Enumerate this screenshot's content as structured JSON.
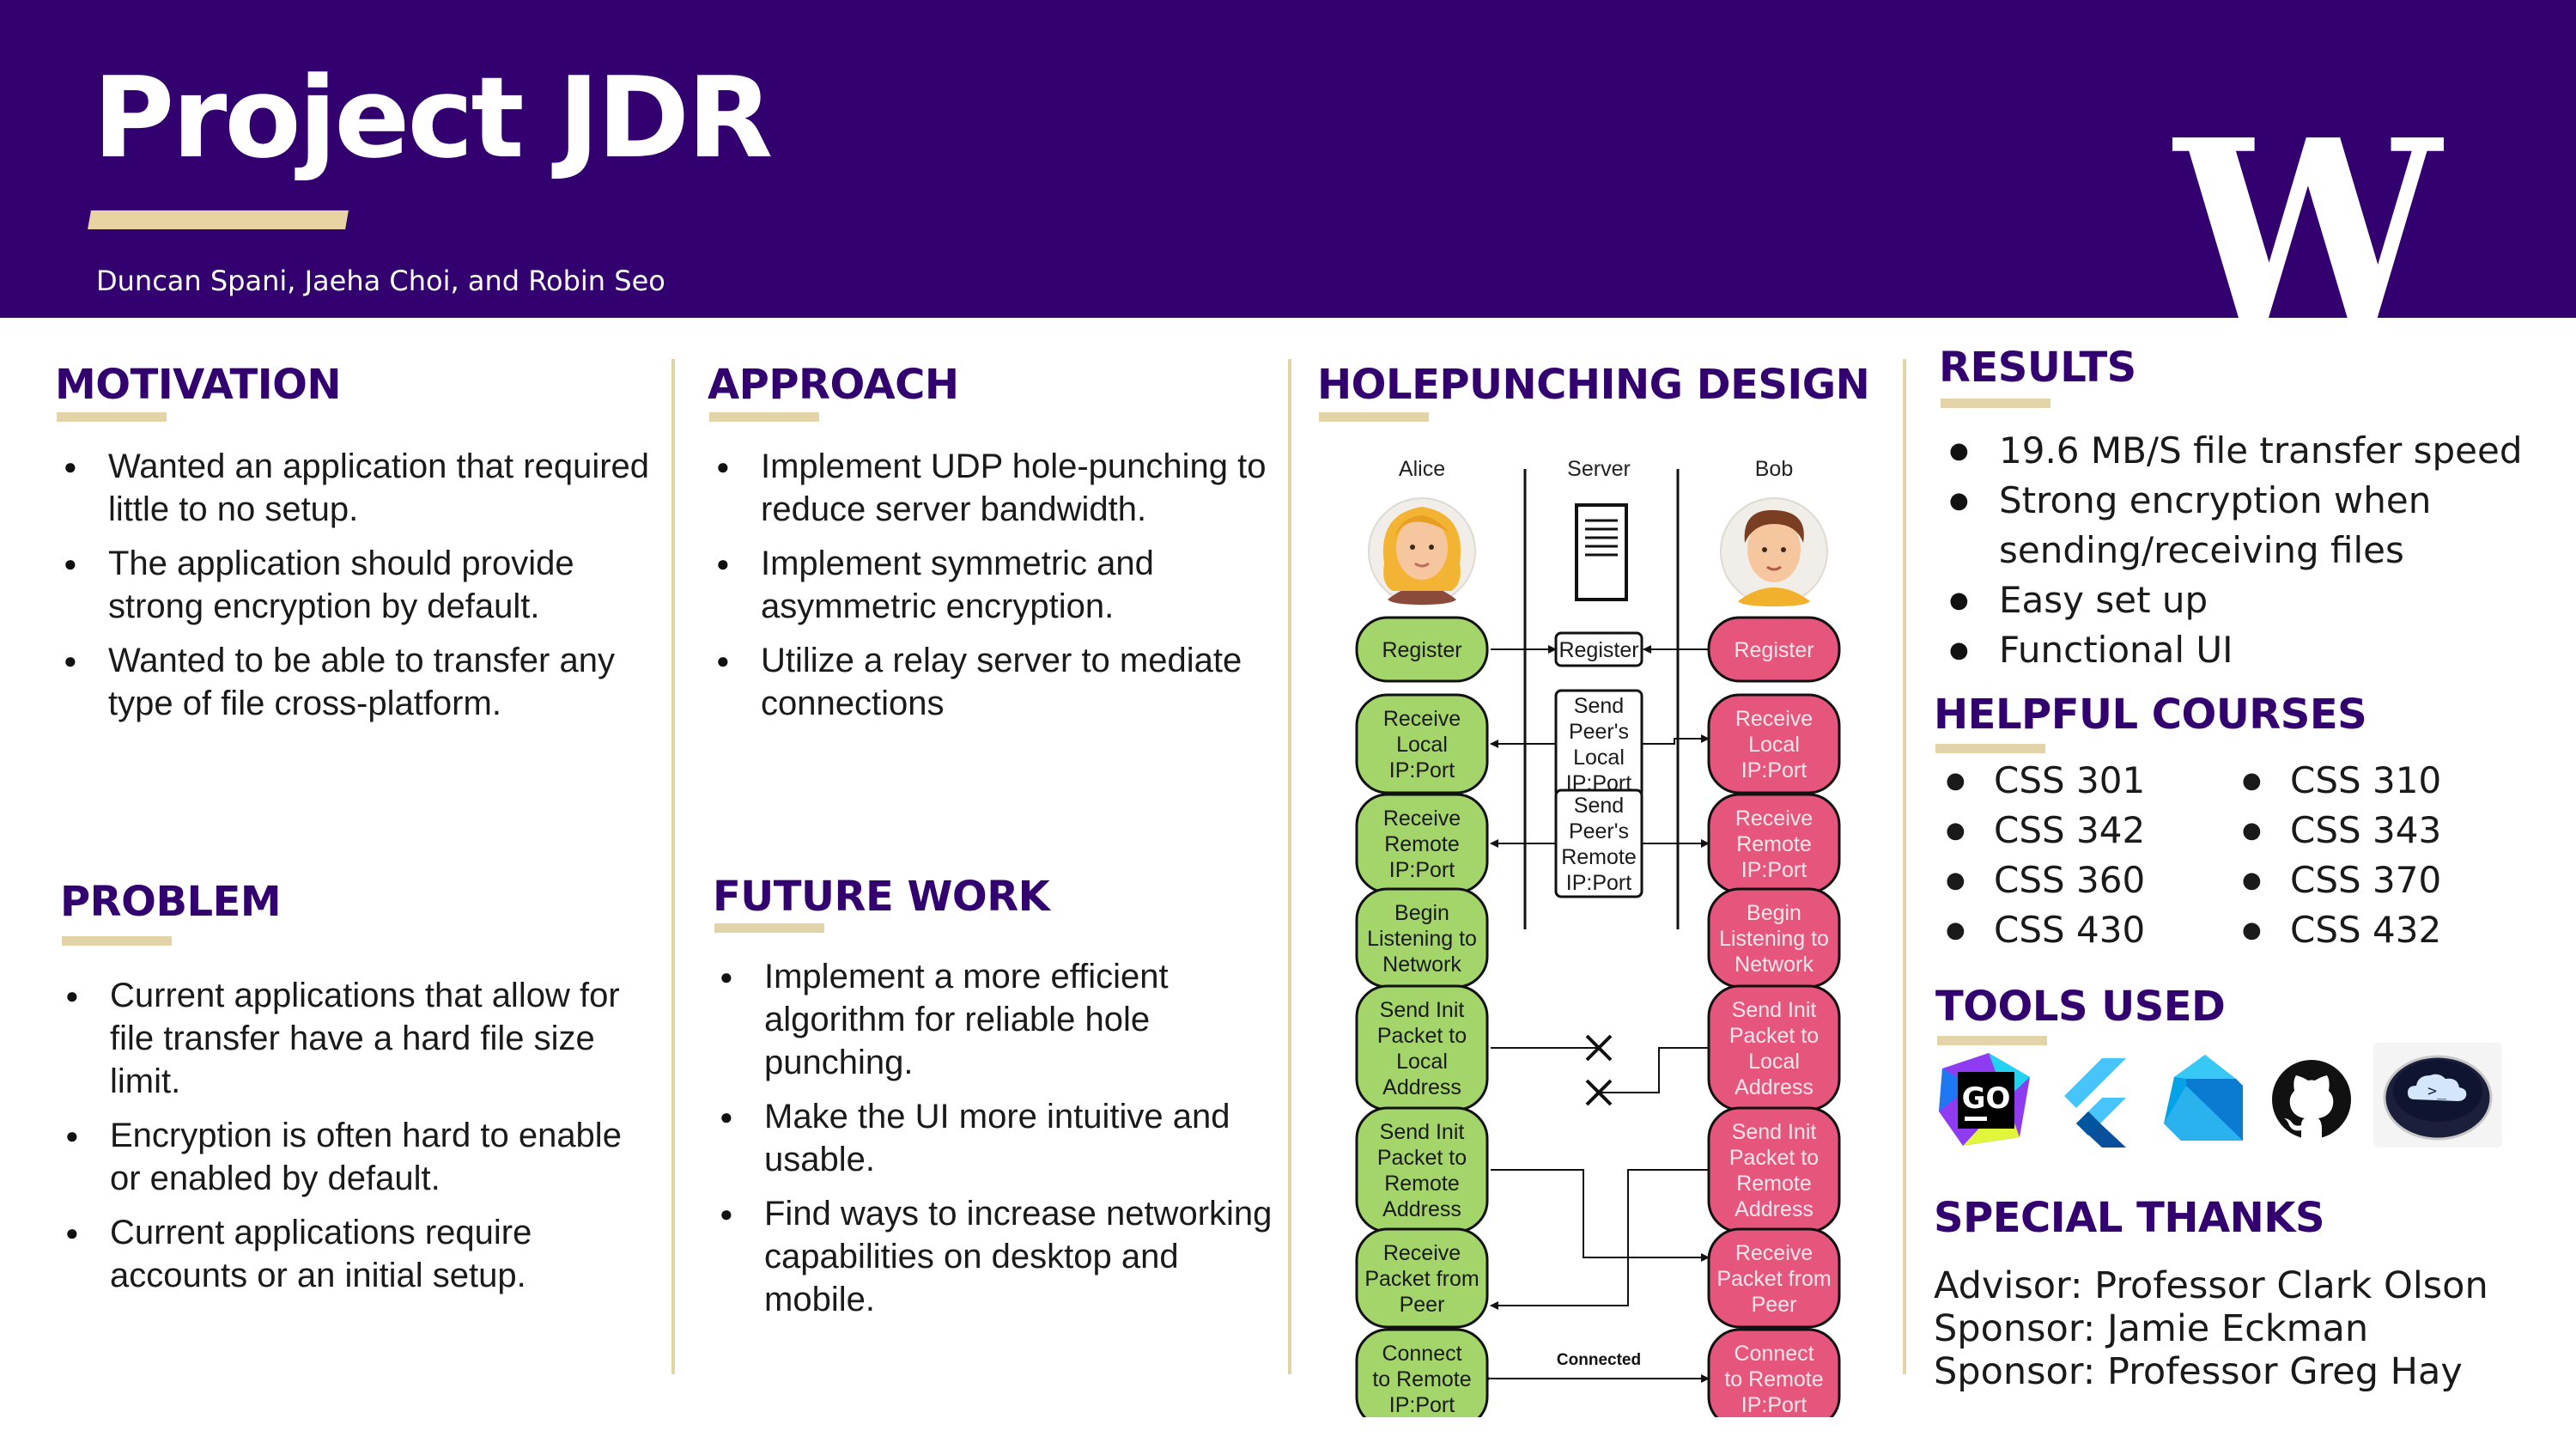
{
  "header": {
    "title": "Project JDR",
    "authors": "Duncan Spani, Jaeha Choi, and Robin Seo",
    "logo_letter": "W"
  },
  "motivation": {
    "title": "MOTIVATION",
    "items": [
      "Wanted an application that required little to no setup.",
      "The application should provide strong encryption by default.",
      "Wanted to be able to transfer any type of file cross-platform."
    ]
  },
  "problem": {
    "title": "PROBLEM",
    "items": [
      "Current applications that allow for file transfer have a hard file size limit.",
      "Encryption is often hard to enable or enabled by default.",
      "Current applications require accounts or an initial setup."
    ]
  },
  "approach": {
    "title": "APPROACH",
    "items": [
      "Implement UDP hole-punching to reduce server bandwidth.",
      "Implement symmetric and asymmetric encryption.",
      "Utilize a relay server to mediate connections"
    ]
  },
  "future_work": {
    "title": "FUTURE WORK",
    "items": [
      "Implement a more efficient algorithm for reliable hole punching.",
      "Make the UI more intuitive and usable.",
      "Find ways to increase networking capabilities on desktop and mobile."
    ]
  },
  "design": {
    "title": "HOLEPUNCHING DESIGN",
    "actors": {
      "alice": "Alice",
      "server": "Server",
      "bob": "Bob"
    },
    "alice_steps": [
      "Register",
      "Receive|Local|IP:Port",
      "Receive|Remote|IP:Port",
      "Begin|Listening to|Network",
      "Send Init|Packet to|Local|Address",
      "Send Init|Packet to|Remote|Address",
      "Receive|Packet from|Peer",
      "Connect|to Remote|IP:Port"
    ],
    "server_steps": [
      "Register",
      "Send|Peer's|Local|IP:Port",
      "Send|Peer's|Remote|IP:Port"
    ],
    "bob_steps": [
      "Register",
      "Receive|Local|IP:Port",
      "Receive|Remote|IP:Port",
      "Begin|Listening to|Network",
      "Send Init|Packet to|Local|Address",
      "Send Init|Packet to|Remote|Address",
      "Receive|Packet from|Peer",
      "Connect|to Remote|IP:Port"
    ],
    "connected_label": "Connected",
    "colors": {
      "alice_fill": "#a4d56b",
      "bob_fill": "#e6557c",
      "stroke": "#111111"
    }
  },
  "results": {
    "title": "RESULTS",
    "items": [
      "19.6 MB/S file transfer speed",
      "Strong encryption when sending/receiving files",
      "Easy set up",
      "Functional UI"
    ]
  },
  "courses": {
    "title": "HELPFUL COURSES",
    "items": [
      "CSS 301",
      "CSS 310",
      "CSS 342",
      "CSS 343",
      "CSS 360",
      "CSS 370",
      "CSS 430",
      "CSS 432"
    ]
  },
  "tools": {
    "title": "TOOLS USED",
    "icons": [
      "goland-icon",
      "flutter-icon",
      "dart-icon",
      "github-icon",
      "cloud-terminal-icon"
    ],
    "go_label": "GO",
    "terminal_label": ">_"
  },
  "thanks": {
    "title": "SPECIAL THANKS",
    "lines": [
      "Advisor: Professor Clark Olson",
      "Sponsor: Jamie Eckman",
      "Sponsor: Professor Greg Hay"
    ]
  },
  "colors": {
    "purple": "#33006f",
    "gold": "#e3d3a8"
  }
}
